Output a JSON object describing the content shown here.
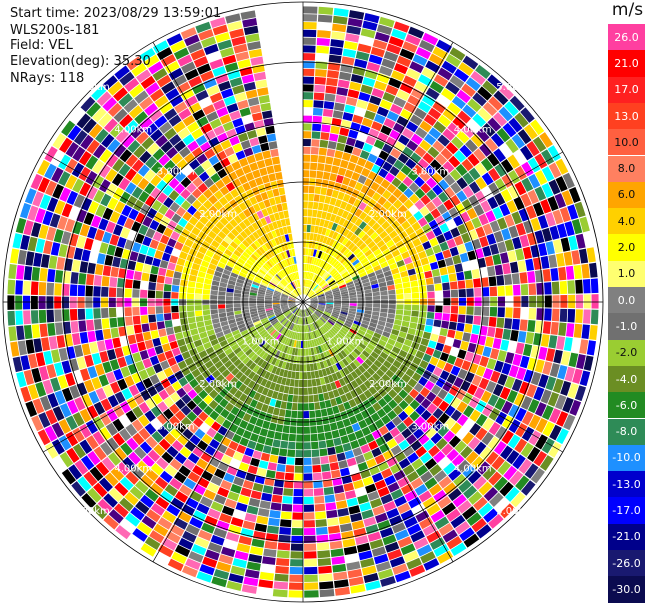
{
  "header": {
    "start_time": "Start time: 2023/08/29 13:59:01",
    "instrument": "WLS200s-181",
    "field": "Field: VEL",
    "elevation": "Elevation(deg): 35.30",
    "nrays": "NRays: 118"
  },
  "colorbar": {
    "unit": "m/s",
    "levels": [
      {
        "label": "26.0",
        "color": "#ff3fa0"
      },
      {
        "label": "21.0",
        "color": "#ff0000"
      },
      {
        "label": "17.0",
        "color": "#ff2020"
      },
      {
        "label": "13.0",
        "color": "#ff4020"
      },
      {
        "label": "10.0",
        "color": "#ff6040"
      },
      {
        "label": "8.0",
        "color": "#ff8060"
      },
      {
        "label": "6.0",
        "color": "#ffa500"
      },
      {
        "label": "4.0",
        "color": "#ffd000"
      },
      {
        "label": "2.0",
        "color": "#ffff00"
      },
      {
        "label": "1.0",
        "color": "#ffff70"
      },
      {
        "label": "0.0",
        "color": "#808080"
      },
      {
        "label": "-1.0",
        "color": "#707070"
      },
      {
        "label": "-2.0",
        "color": "#9acd32"
      },
      {
        "label": "-4.0",
        "color": "#6b8e23"
      },
      {
        "label": "-6.0",
        "color": "#228b22"
      },
      {
        "label": "-8.0",
        "color": "#2e8b57"
      },
      {
        "label": "-10.0",
        "color": "#1e90ff"
      },
      {
        "label": "-13.0",
        "color": "#0000cd"
      },
      {
        "label": "-17.0",
        "color": "#0000ff"
      },
      {
        "label": "-21.0",
        "color": "#00008b"
      },
      {
        "label": "-26.0",
        "color": "#191970"
      },
      {
        "label": "-30.0",
        "color": "#0b0b50"
      }
    ]
  },
  "chart_data": {
    "type": "heatmap",
    "projection": "polar-ppi",
    "field": "VEL",
    "unit": "m/s",
    "range_rings_km": [
      1.0,
      2.0,
      3.0,
      4.0,
      5.0
    ],
    "ring_labels": [
      "1.00km",
      "1.00km",
      "2.00km",
      "2.00km",
      "2.00km",
      "2.00km",
      "3.00km",
      "3.00km",
      "3.00km",
      "3.00km",
      "4.00km",
      "4.00km",
      "4.00km",
      "4.00km",
      "5.00km",
      "5.00km",
      "5.00km",
      "5.00km"
    ],
    "max_range_km": 5.0,
    "azimuth_spokes_deg": [
      0,
      30,
      60,
      90,
      120,
      150,
      180,
      210,
      240,
      270,
      300,
      330
    ],
    "gap_azimuth_deg": [
      352,
      1
    ],
    "rays": 118,
    "velocity_structure": [
      {
        "region": "north near-range",
        "range_km": [
          0.0,
          2.5
        ],
        "velocity_ms": 4.0
      },
      {
        "region": "north inner",
        "range_km": [
          0.0,
          1.0
        ],
        "velocity_ms": 1.5
      },
      {
        "region": "south inner",
        "range_km": [
          0.0,
          1.2
        ],
        "velocity_ms": -2.0
      },
      {
        "region": "south near-range",
        "range_km": [
          0.0,
          2.5
        ],
        "velocity_ms": -6.0
      },
      {
        "region": "east/west edge",
        "range_km": [
          0.0,
          1.5
        ],
        "velocity_ms": 0.0
      },
      {
        "region": "far range noise",
        "range_km": [
          2.5,
          5.0
        ],
        "velocity_ms": null
      }
    ]
  }
}
